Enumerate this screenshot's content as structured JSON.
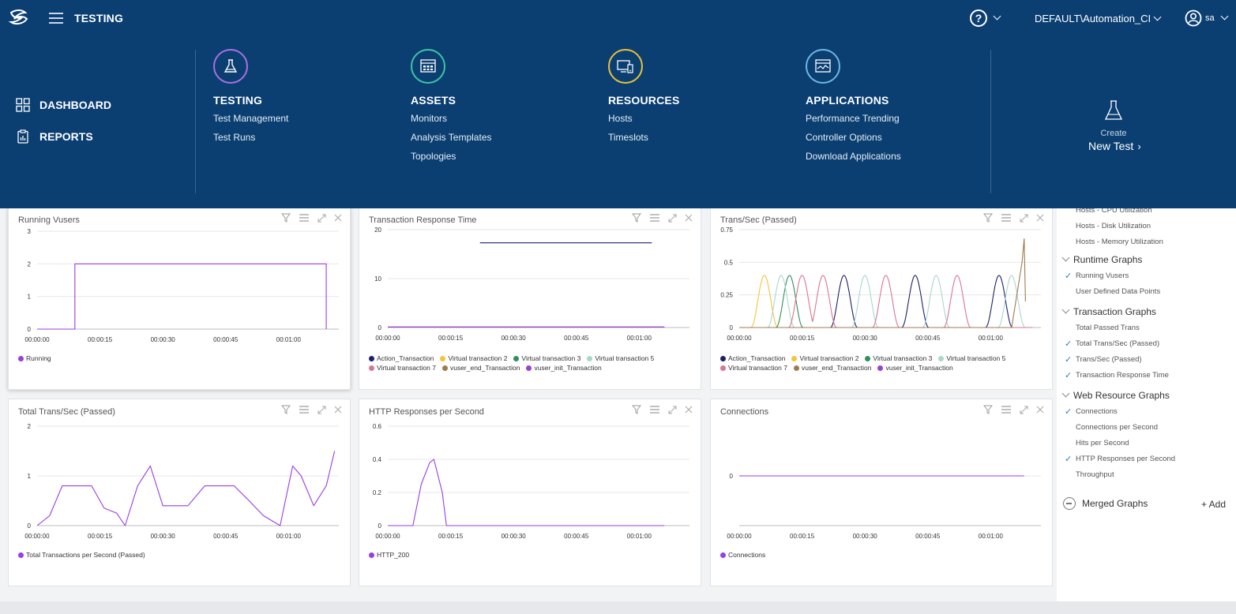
{
  "header": {
    "app_title": "TESTING",
    "tenant": "DEFAULT\\Automation_CI",
    "user": "sa"
  },
  "menu": {
    "left": [
      {
        "label": "DASHBOARD",
        "icon": "dashboard-grid-icon"
      },
      {
        "label": "REPORTS",
        "icon": "reports-clipboard-icon"
      }
    ],
    "sections": [
      {
        "title": "TESTING",
        "icon": "flask-icon",
        "color": "#a970e0",
        "links": [
          "Test Management",
          "Test Runs"
        ]
      },
      {
        "title": "ASSETS",
        "icon": "grid-window-icon",
        "color": "#3ec5a3",
        "links": [
          "Monitors",
          "Analysis Templates",
          "Topologies"
        ]
      },
      {
        "title": "RESOURCES",
        "icon": "devices-icon",
        "color": "#e9c13a",
        "links": [
          "Hosts",
          "Timeslots"
        ]
      },
      {
        "title": "APPLICATIONS",
        "icon": "chart-window-icon",
        "color": "#6fb6e6",
        "links": [
          "Performance Trending",
          "Controller Options",
          "Download Applications"
        ]
      }
    ],
    "create": {
      "label": "Create",
      "action": "New Test"
    }
  },
  "panels": {
    "p1": {
      "title": "Running Vusers"
    },
    "p2": {
      "title": "Transaction Response Time"
    },
    "p3": {
      "title": "Trans/Sec (Passed)"
    },
    "p4": {
      "title": "Total Trans/Sec (Passed)"
    },
    "p5": {
      "title": "HTTP Responses per Second"
    },
    "p6": {
      "title": "Connections"
    }
  },
  "colors": {
    "Action_Transaction": "#1d1f6e",
    "Virtual transaction 2": "#f3c43c",
    "Virtual transaction 3": "#2f8f5f",
    "Virtual transaction 5": "#a8d8cc",
    "Virtual transaction 7": "#d9758f",
    "vuser_end_Transaction": "#a07a4f",
    "vuser_init_Transaction": "#9a3ee0",
    "purple": "#9a3ee0"
  },
  "chart_data": [
    {
      "id": "p1",
      "type": "line",
      "title": "Running Vusers",
      "x_ticks": [
        "00:00:00",
        "00:00:15",
        "00:00:30",
        "00:00:45",
        "00:01:00"
      ],
      "y_ticks": [
        "0",
        "1",
        "2",
        "3"
      ],
      "ylim": [
        0,
        3
      ],
      "xlim": [
        0,
        72
      ],
      "series": [
        {
          "name": "Running",
          "x": [
            0,
            9,
            9,
            69,
            69
          ],
          "y": [
            0,
            0,
            2,
            2,
            0
          ]
        }
      ]
    },
    {
      "id": "p2",
      "type": "line",
      "title": "Transaction Response Time",
      "x_ticks": [
        "00:00:00",
        "00:00:15",
        "00:00:30",
        "00:00:45",
        "00:01:00"
      ],
      "y_ticks": [
        "0",
        "10",
        "20"
      ],
      "ylim": [
        0,
        20
      ],
      "xlim": [
        0,
        72
      ],
      "series": [
        {
          "name": "Action_Transaction",
          "x": [
            22,
            63
          ],
          "y": [
            17.3,
            17.3
          ]
        },
        {
          "name": "Virtual transaction 2",
          "x": [
            0,
            66
          ],
          "y": [
            0.1,
            0.1
          ]
        },
        {
          "name": "Virtual transaction 3",
          "x": [
            0,
            66
          ],
          "y": [
            0.1,
            0.1
          ]
        },
        {
          "name": "Virtual transaction 5",
          "x": [
            0,
            66
          ],
          "y": [
            0.1,
            0.1
          ]
        },
        {
          "name": "Virtual transaction 7",
          "x": [
            0,
            66
          ],
          "y": [
            0.1,
            0.1
          ]
        },
        {
          "name": "vuser_end_Transaction",
          "x": [
            0,
            66
          ],
          "y": [
            0.1,
            0.1
          ]
        },
        {
          "name": "vuser_init_Transaction",
          "x": [
            0,
            66
          ],
          "y": [
            0.1,
            0.1
          ]
        }
      ]
    },
    {
      "id": "p3",
      "type": "line",
      "title": "Trans/Sec (Passed)",
      "x_ticks": [
        "00:00:00",
        "00:00:15",
        "00:00:30",
        "00:00:45",
        "00:01:00"
      ],
      "y_ticks": [
        "0",
        "0.25",
        "0.5",
        "0.75"
      ],
      "ylim": [
        0,
        0.75
      ],
      "xlim": [
        0,
        72
      ],
      "series": [
        {
          "name": "Action_Transaction",
          "peaks": [
            25,
            42,
            62
          ],
          "height": 0.4
        },
        {
          "name": "Virtual transaction 2",
          "peaks": [
            6
          ],
          "height": 0.4
        },
        {
          "name": "Virtual transaction 3",
          "peaks": [
            12
          ],
          "height": 0.4
        },
        {
          "name": "Virtual transaction 5",
          "peaks": [
            10,
            30,
            47,
            65
          ],
          "height": 0.4
        },
        {
          "name": "Virtual transaction 7",
          "peaks": [
            15,
            20,
            35,
            52
          ],
          "height": 0.4
        },
        {
          "name": "vuser_end_Transaction",
          "peaks": [
            68
          ],
          "height": 0.68
        },
        {
          "name": "vuser_init_Transaction",
          "peaks": [],
          "height": 0
        }
      ]
    },
    {
      "id": "p4",
      "type": "line",
      "title": "Total Trans/Sec (Passed)",
      "x_ticks": [
        "00:00:00",
        "00:00:15",
        "00:00:30",
        "00:00:45",
        "00:01:00"
      ],
      "y_ticks": [
        "0",
        "1",
        "2"
      ],
      "ylim": [
        0,
        2
      ],
      "xlim": [
        0,
        72
      ],
      "series": [
        {
          "name": "Total Transactions per Second (Passed)",
          "x": [
            0,
            3,
            6,
            9,
            13,
            16,
            19,
            21,
            24,
            27,
            30,
            33,
            36,
            40,
            43,
            47,
            50,
            54,
            58,
            61,
            63,
            66,
            69,
            71
          ],
          "y": [
            0,
            0.2,
            0.8,
            0.8,
            0.8,
            0.35,
            0.25,
            0,
            0.8,
            1.2,
            0.4,
            0.4,
            0.4,
            0.8,
            0.8,
            0.8,
            0.55,
            0.2,
            0,
            1.2,
            1.0,
            0.4,
            0.8,
            1.5
          ]
        }
      ]
    },
    {
      "id": "p5",
      "type": "line",
      "title": "HTTP Responses per Second",
      "x_ticks": [
        "00:00:00",
        "00:00:15",
        "00:00:30",
        "00:00:45",
        "00:01:00"
      ],
      "y_ticks": [
        "0",
        "0.2",
        "0.4",
        "0.6"
      ],
      "ylim": [
        0,
        0.6
      ],
      "xlim": [
        0,
        72
      ],
      "series": [
        {
          "name": "HTTP_200",
          "x": [
            0,
            6,
            8,
            10,
            11,
            13,
            14,
            66
          ],
          "y": [
            0,
            0,
            0.25,
            0.38,
            0.4,
            0.2,
            0,
            0
          ]
        }
      ]
    },
    {
      "id": "p6",
      "type": "line",
      "title": "Connections",
      "x_ticks": [
        "00:00:00",
        "00:00:15",
        "00:00:30",
        "00:00:45",
        "00:01:00"
      ],
      "y_ticks": [
        "0"
      ],
      "ylim": [
        -1,
        1
      ],
      "xlim": [
        0,
        72
      ],
      "series": [
        {
          "name": "Connections",
          "x": [
            0,
            68
          ],
          "y": [
            0,
            0
          ]
        }
      ]
    }
  ],
  "rightpanel": {
    "top_items": [
      "Hosts - CPU Utilization",
      "Hosts - Disk Utilization",
      "Hosts - Memory Utilization"
    ],
    "groups": [
      {
        "title": "Runtime Graphs",
        "items": [
          {
            "label": "Running Vusers",
            "checked": true
          },
          {
            "label": "User Defined Data Points",
            "checked": false
          }
        ]
      },
      {
        "title": "Transaction Graphs",
        "items": [
          {
            "label": "Total Passed Trans",
            "checked": false
          },
          {
            "label": "Total Trans/Sec (Passed)",
            "checked": true
          },
          {
            "label": "Trans/Sec (Passed)",
            "checked": true
          },
          {
            "label": "Transaction Response Time",
            "checked": true
          }
        ]
      },
      {
        "title": "Web Resource Graphs",
        "items": [
          {
            "label": "Connections",
            "checked": true
          },
          {
            "label": "Connections per Second",
            "checked": false
          },
          {
            "label": "Hits per Second",
            "checked": false
          },
          {
            "label": "HTTP Responses per Second",
            "checked": true
          },
          {
            "label": "Throughput",
            "checked": false
          }
        ]
      }
    ],
    "merged": "Merged Graphs",
    "add": "+ Add"
  }
}
